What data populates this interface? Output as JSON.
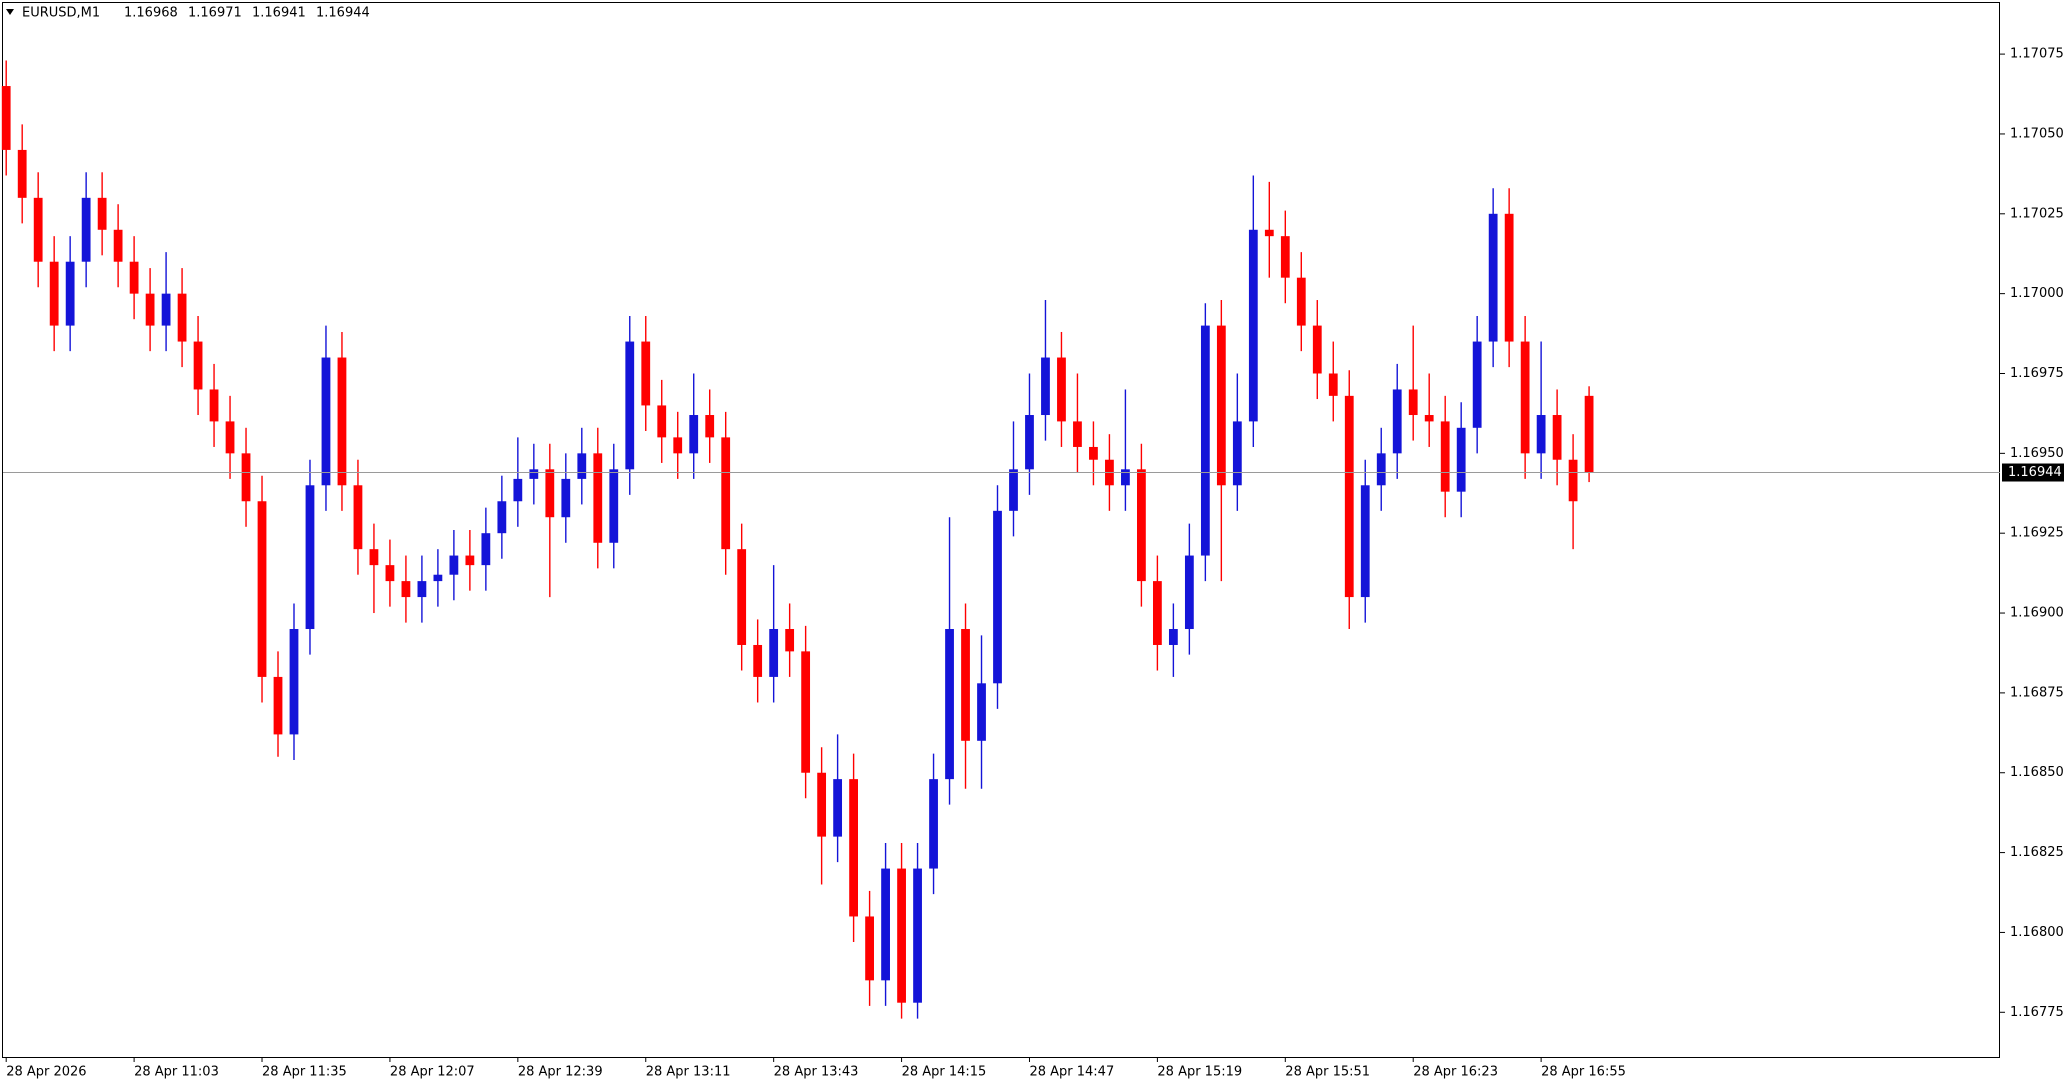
{
  "chart_data": {
    "type": "candlestick",
    "title": "EURUSD,M1",
    "up_color": "#1414d8",
    "down_color": "#ff0000",
    "price_line_color": "#9a9a9a",
    "xlim": [
      -0.2,
      124.7
    ],
    "xticks": [
      {
        "value": 0,
        "label": "28 Apr 2026"
      },
      {
        "value": 8,
        "label": "28 Apr 11:03"
      },
      {
        "value": 16,
        "label": "28 Apr 11:35"
      },
      {
        "value": 24,
        "label": "28 Apr 12:07"
      },
      {
        "value": 32,
        "label": "28 Apr 12:39"
      },
      {
        "value": 40,
        "label": "28 Apr 13:11"
      },
      {
        "value": 48,
        "label": "28 Apr 13:43"
      },
      {
        "value": 56,
        "label": "28 Apr 14:15"
      },
      {
        "value": 64,
        "label": "28 Apr 14:47"
      },
      {
        "value": 72,
        "label": "28 Apr 15:19"
      },
      {
        "value": 80,
        "label": "28 Apr 15:51"
      },
      {
        "value": 88,
        "label": "28 Apr 16:23"
      },
      {
        "value": 96,
        "label": "28 Apr 16:55"
      }
    ],
    "ylim": [
      1.16761,
      1.17091
    ],
    "yticks": [
      1.16775,
      {
        "value": 1.168,
        "label": "1.16800"
      },
      1.16825,
      {
        "value": 1.1685,
        "label": "1.16850"
      },
      1.16875,
      {
        "value": 1.169,
        "label": "1.16900"
      },
      1.16925,
      {
        "value": 1.1695,
        "label": "1.16950"
      },
      1.16975,
      {
        "value": 1.17,
        "label": "1.17000"
      },
      1.17025,
      {
        "value": 1.1705,
        "label": "1.17050"
      },
      1.17075
    ],
    "open": [
      1.17065,
      1.17045,
      1.1703,
      1.1701,
      1.1699,
      1.1701,
      1.1703,
      1.1702,
      1.1701,
      1.17,
      1.1699,
      1.17,
      1.16985,
      1.1697,
      1.1696,
      1.1695,
      1.16935,
      1.1688,
      1.16862,
      1.16895,
      1.1694,
      1.1698,
      1.1694,
      1.1692,
      1.16915,
      1.1691,
      1.16905,
      1.1691,
      1.16912,
      1.16918,
      1.16915,
      1.16925,
      1.16935,
      1.16942,
      1.16945,
      1.1693,
      1.16942,
      1.1695,
      1.16922,
      1.16945,
      1.16985,
      1.16965,
      1.16955,
      1.1695,
      1.16962,
      1.16955,
      1.1692,
      1.1689,
      1.1688,
      1.16895,
      1.16888,
      1.1685,
      1.1683,
      1.16848,
      1.16805,
      1.16785,
      1.1682,
      1.16778,
      1.1682,
      1.16848,
      1.16895,
      1.1686,
      1.16878,
      1.16932,
      1.16945,
      1.16962,
      1.1698,
      1.1696,
      1.16952,
      1.16948,
      1.1694,
      1.16945,
      1.1691,
      1.1689,
      1.16895,
      1.16918,
      1.1699,
      1.1694,
      1.1696,
      1.1702,
      1.17018,
      1.17005,
      1.1699,
      1.16975,
      1.16968,
      1.16905,
      1.1694,
      1.1695,
      1.1697,
      1.16962,
      1.1696,
      1.16938,
      1.16958,
      1.16985,
      1.17025,
      1.16985,
      1.1695,
      1.16962,
      1.16948,
      1.16968
    ],
    "high": [
      1.17073,
      1.17053,
      1.17038,
      1.17018,
      1.17018,
      1.17038,
      1.17038,
      1.17028,
      1.17018,
      1.17008,
      1.17013,
      1.17008,
      1.16993,
      1.16978,
      1.16968,
      1.16958,
      1.16943,
      1.16888,
      1.16903,
      1.16948,
      1.1699,
      1.16988,
      1.16948,
      1.16928,
      1.16923,
      1.16918,
      1.16918,
      1.1692,
      1.16926,
      1.16926,
      1.16933,
      1.16943,
      1.16955,
      1.16953,
      1.16953,
      1.1695,
      1.16958,
      1.16958,
      1.16953,
      1.16993,
      1.16993,
      1.16973,
      1.16963,
      1.16975,
      1.1697,
      1.16963,
      1.16928,
      1.16898,
      1.16915,
      1.16903,
      1.16896,
      1.16858,
      1.16862,
      1.16856,
      1.16813,
      1.16828,
      1.16828,
      1.16828,
      1.16856,
      1.1693,
      1.16903,
      1.16893,
      1.1694,
      1.1696,
      1.16975,
      1.16998,
      1.16988,
      1.16975,
      1.1696,
      1.16956,
      1.1697,
      1.16953,
      1.16918,
      1.16903,
      1.16928,
      1.16997,
      1.16998,
      1.16975,
      1.17037,
      1.17035,
      1.17026,
      1.17013,
      1.16998,
      1.16985,
      1.16976,
      1.16948,
      1.16958,
      1.16978,
      1.1699,
      1.16975,
      1.16968,
      1.16966,
      1.16993,
      1.17033,
      1.17033,
      1.16993,
      1.16985,
      1.1697,
      1.16956,
      1.16971
    ],
    "low": [
      1.17037,
      1.17022,
      1.17002,
      1.16982,
      1.16982,
      1.17002,
      1.17012,
      1.17002,
      1.16992,
      1.16982,
      1.16982,
      1.16977,
      1.16962,
      1.16952,
      1.16942,
      1.16927,
      1.16872,
      1.16855,
      1.16854,
      1.16887,
      1.16932,
      1.16932,
      1.16912,
      1.169,
      1.16902,
      1.16897,
      1.16897,
      1.16902,
      1.16904,
      1.16907,
      1.16907,
      1.16917,
      1.16927,
      1.16934,
      1.16905,
      1.16922,
      1.16934,
      1.16914,
      1.16914,
      1.16937,
      1.16957,
      1.16947,
      1.16942,
      1.16942,
      1.16947,
      1.16912,
      1.16882,
      1.16872,
      1.16872,
      1.1688,
      1.16842,
      1.16815,
      1.16822,
      1.16797,
      1.16777,
      1.16777,
      1.16773,
      1.16773,
      1.16812,
      1.1684,
      1.16845,
      1.16845,
      1.1687,
      1.16924,
      1.16937,
      1.16954,
      1.16952,
      1.16944,
      1.1694,
      1.16932,
      1.16932,
      1.16902,
      1.16882,
      1.1688,
      1.16887,
      1.1691,
      1.1691,
      1.16932,
      1.16952,
      1.17005,
      1.16997,
      1.16982,
      1.16967,
      1.1696,
      1.16895,
      1.16897,
      1.16932,
      1.16942,
      1.16954,
      1.16952,
      1.1693,
      1.1693,
      1.1695,
      1.16977,
      1.16977,
      1.16942,
      1.16942,
      1.1694,
      1.1692,
      1.16941
    ],
    "close": [
      1.17045,
      1.1703,
      1.1701,
      1.1699,
      1.1701,
      1.1703,
      1.1702,
      1.1701,
      1.17,
      1.1699,
      1.17,
      1.16985,
      1.1697,
      1.1696,
      1.1695,
      1.16935,
      1.1688,
      1.16862,
      1.16895,
      1.1694,
      1.1698,
      1.1694,
      1.1692,
      1.16915,
      1.1691,
      1.16905,
      1.1691,
      1.16912,
      1.16918,
      1.16915,
      1.16925,
      1.16935,
      1.16942,
      1.16945,
      1.1693,
      1.16942,
      1.1695,
      1.16922,
      1.16945,
      1.16985,
      1.16965,
      1.16955,
      1.1695,
      1.16962,
      1.16955,
      1.1692,
      1.1689,
      1.1688,
      1.16895,
      1.16888,
      1.1685,
      1.1683,
      1.16848,
      1.16805,
      1.16785,
      1.1682,
      1.16778,
      1.1682,
      1.16848,
      1.16895,
      1.1686,
      1.16878,
      1.16932,
      1.16945,
      1.16962,
      1.1698,
      1.1696,
      1.16952,
      1.16948,
      1.1694,
      1.16945,
      1.1691,
      1.1689,
      1.16895,
      1.16918,
      1.1699,
      1.1694,
      1.1696,
      1.1702,
      1.17018,
      1.17005,
      1.1699,
      1.16975,
      1.16968,
      1.16905,
      1.1694,
      1.1695,
      1.1697,
      1.16962,
      1.1696,
      1.16938,
      1.16958,
      1.16985,
      1.17025,
      1.16985,
      1.1695,
      1.16962,
      1.16948,
      1.16935,
      1.16944
    ]
  }
}
